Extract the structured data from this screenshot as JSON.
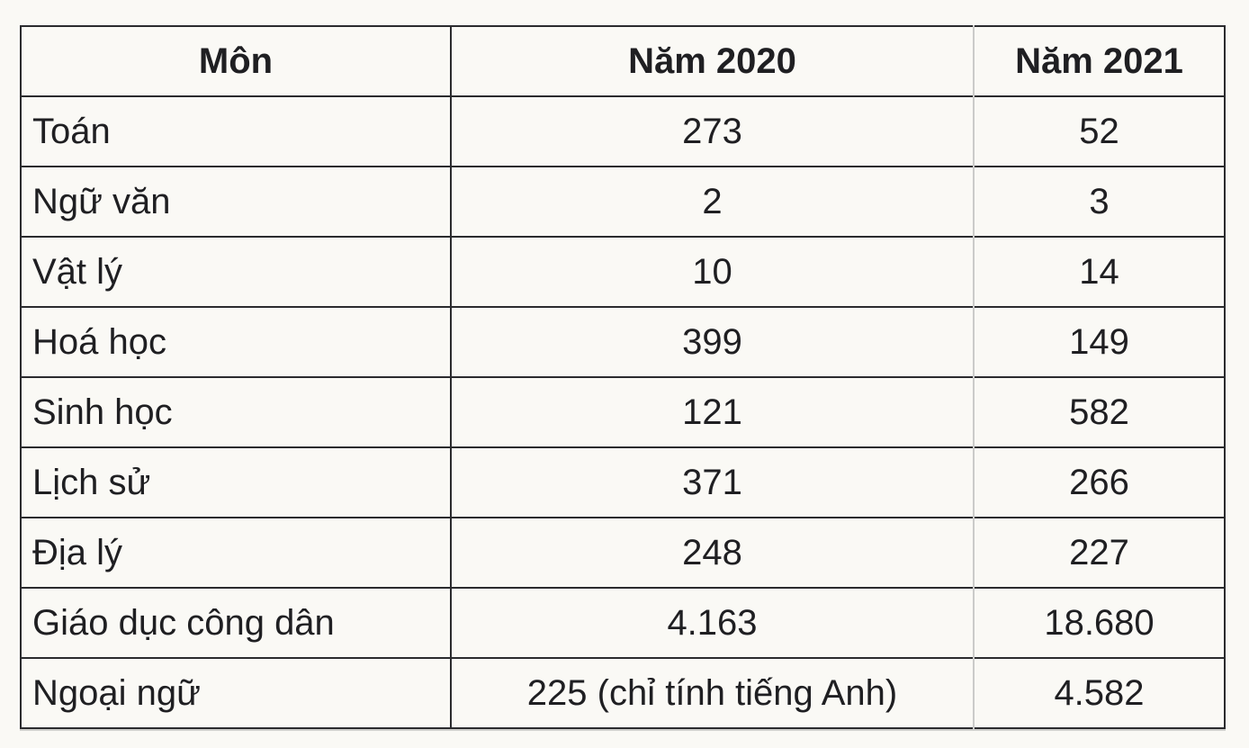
{
  "page": {
    "background_color": "#faf9f5",
    "text_color": "#1f1f22",
    "rule_dark_color": "#2b2b2e",
    "rule_light_color": "#cbcbc9"
  },
  "table": {
    "columns": [
      {
        "label": "Môn",
        "align": "left"
      },
      {
        "label": "Năm 2020",
        "align": "center"
      },
      {
        "label": "Năm 2021",
        "align": "center"
      }
    ],
    "rows": [
      {
        "subject": "Toán",
        "y2020": "273",
        "y2021": "52"
      },
      {
        "subject": "Ngữ văn",
        "y2020": "2",
        "y2021": "3"
      },
      {
        "subject": "Vật lý",
        "y2020": "10",
        "y2021": "14"
      },
      {
        "subject": "Hoá học",
        "y2020": "399",
        "y2021": "149"
      },
      {
        "subject": "Sinh học",
        "y2020": "121",
        "y2021": "582"
      },
      {
        "subject": "Lịch sử",
        "y2020": "371",
        "y2021": "266"
      },
      {
        "subject": "Địa lý",
        "y2020": "248",
        "y2021": "227"
      },
      {
        "subject": "Giáo dục công dân",
        "y2020": "4.163",
        "y2021": "18.680"
      },
      {
        "subject": "Ngoại ngữ",
        "y2020": "225 (chỉ tính tiếng Anh)",
        "y2021": "4.582"
      }
    ]
  },
  "chart_data": {
    "type": "table",
    "title": "",
    "columns": [
      "Môn",
      "Năm 2020",
      "Năm 2021"
    ],
    "rows": [
      [
        "Toán",
        "273",
        "52"
      ],
      [
        "Ngữ văn",
        "2",
        "3"
      ],
      [
        "Vật lý",
        "10",
        "14"
      ],
      [
        "Hoá học",
        "399",
        "149"
      ],
      [
        "Sinh học",
        "121",
        "582"
      ],
      [
        "Lịch sử",
        "371",
        "266"
      ],
      [
        "Địa lý",
        "248",
        "227"
      ],
      [
        "Giáo dục công dân",
        "4.163",
        "18.680"
      ],
      [
        "Ngoại ngữ",
        "225 (chỉ tính tiếng Anh)",
        "4.582"
      ]
    ]
  }
}
